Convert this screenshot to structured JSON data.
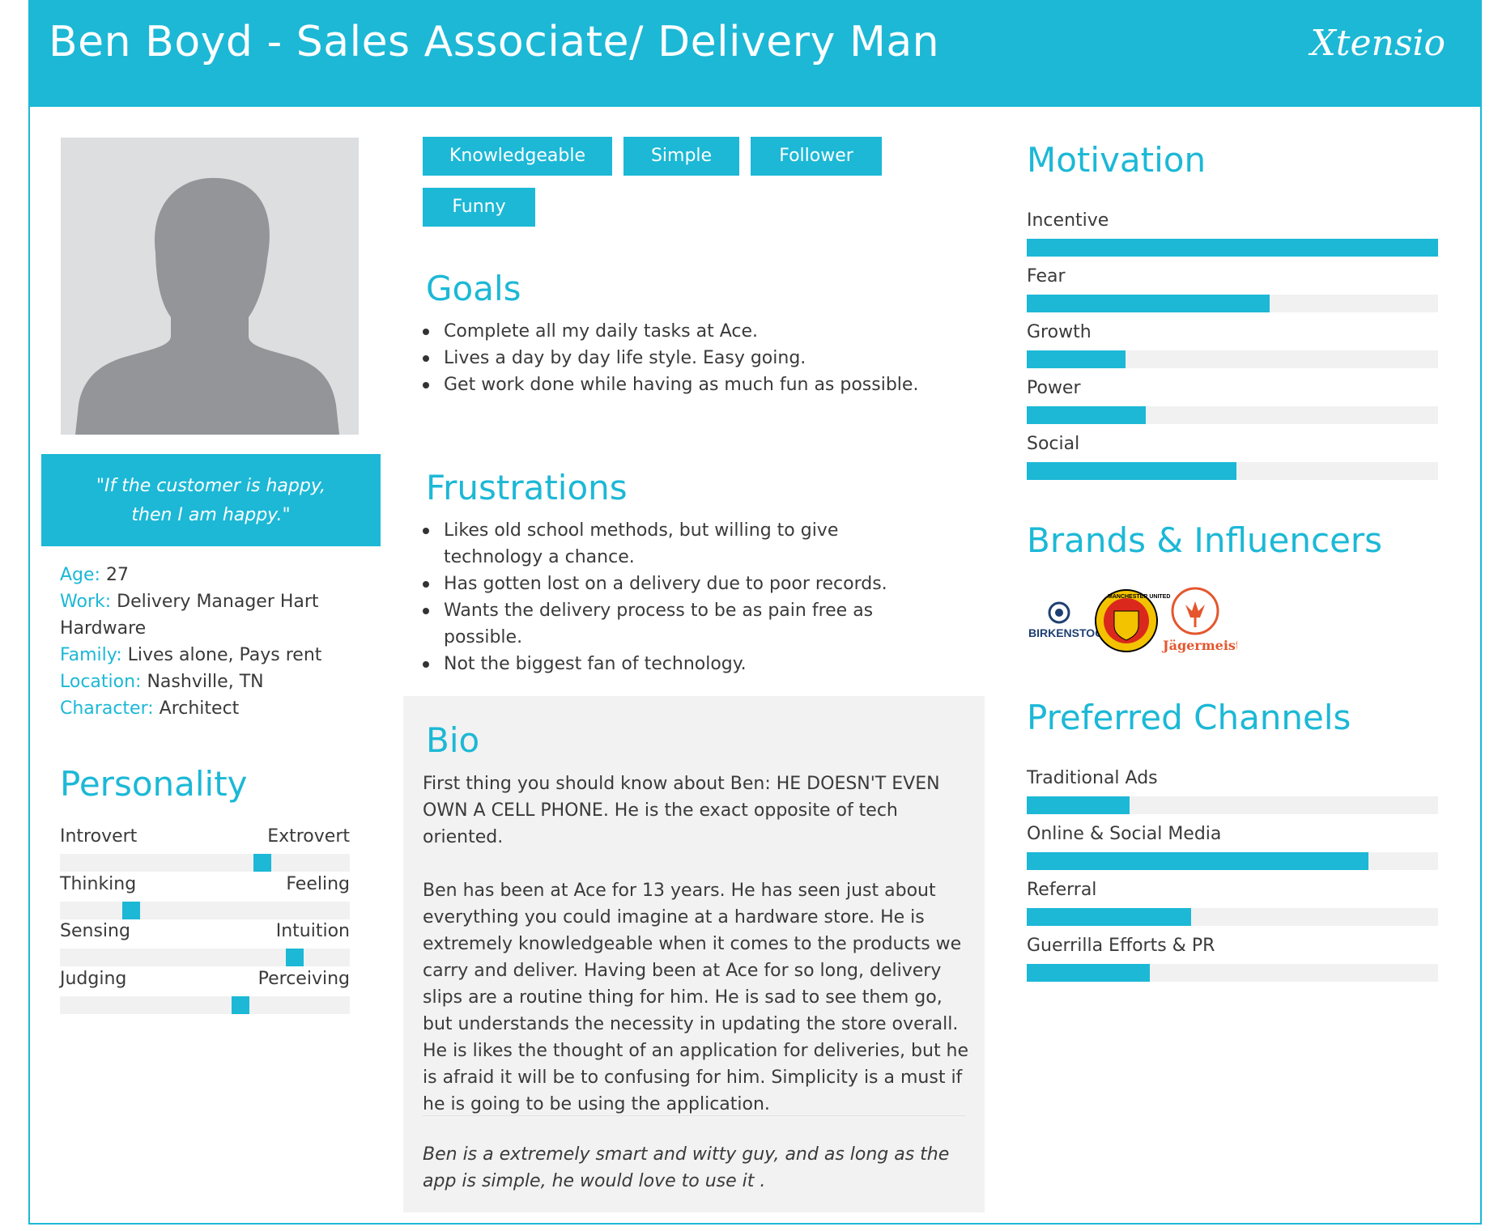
{
  "header": {
    "title": "Ben Boyd - Sales Associate/ Delivery Man",
    "logo": "Xtensio"
  },
  "quote": {
    "line1": "\"If the customer is happy,",
    "line2": "then I am happy.\""
  },
  "info": {
    "age_label": "Age:",
    "age": "27",
    "work_label": "Work:",
    "work_line1": "Delivery Manager Hart",
    "work_line2": "Hardware",
    "family_label": "Family:",
    "family": "Lives alone, Pays rent",
    "location_label": "Location:",
    "location": "Nashville, TN",
    "character_label": "Character:",
    "character": "Architect"
  },
  "personality": {
    "title": "Personality",
    "scales": [
      {
        "left": "Introvert",
        "right": "Extrovert",
        "value": 0.71
      },
      {
        "left": "Thinking",
        "right": "Feeling",
        "value": 0.23
      },
      {
        "left": "Sensing",
        "right": "Intuition",
        "value": 0.83
      },
      {
        "left": "Judging",
        "right": "Perceiving",
        "value": 0.63
      }
    ]
  },
  "tags": [
    "Knowledgeable",
    "Simple",
    "Follower",
    "Funny"
  ],
  "goals": {
    "title": "Goals",
    "items": [
      "Complete all my daily tasks at Ace.",
      "Lives a day by day life style. Easy going.",
      "Get work done while having as much fun as possible."
    ]
  },
  "frustrations": {
    "title": "Frustrations",
    "items": [
      "Likes old school methods, but willing to give technology a chance.",
      "Has gotten lost on a delivery due to poor records.",
      "Wants the delivery process to be as pain free as possible.",
      "Not the biggest fan of technology."
    ]
  },
  "bio": {
    "title": "Bio",
    "p1": "First thing you should know about Ben: HE DOESN'T EVEN OWN A CELL PHONE. He is the exact opposite of tech oriented.",
    "p2": "Ben has been at Ace for 13 years. He has seen just about everything you could imagine at a hardware store. He is extremely knowledgeable when it comes to the products we carry and deliver. Having been at Ace for so long, delivery slips are a routine thing for him. He is sad to see them go, but understands the necessity in updating the store overall. He is likes the thought of an application for deliveries, but he is afraid it will be to confusing for him. Simplicity is a must if he is going to be using the application.",
    "note": "Ben is a extremely smart and witty guy, and as long as the app is simple, he would love to use it ."
  },
  "motivation": {
    "title": "Motivation",
    "items": [
      {
        "label": "Incentive",
        "value": 1.0
      },
      {
        "label": "Fear",
        "value": 0.59
      },
      {
        "label": "Growth",
        "value": 0.24
      },
      {
        "label": "Power",
        "value": 0.29
      },
      {
        "label": "Social",
        "value": 0.51
      }
    ]
  },
  "brands": {
    "title": "Brands & Influencers",
    "logos": [
      {
        "name": "birkenstock-logo",
        "text": "BIRKENSTOCK"
      },
      {
        "name": "manchester-united-logo",
        "text": "MANCHESTER UNITED"
      },
      {
        "name": "jagermeister-logo",
        "text": "Jägermeister"
      }
    ]
  },
  "channels": {
    "title": "Preferred Channels",
    "items": [
      {
        "label": "Traditional Ads",
        "value": 0.25
      },
      {
        "label": "Online & Social Media",
        "value": 0.83
      },
      {
        "label": "Referral",
        "value": 0.4
      },
      {
        "label": "Guerrilla Efforts & PR",
        "value": 0.3
      }
    ]
  },
  "colors": {
    "accent": "#1cb8d6",
    "track": "#f1f1f1",
    "bio_bg": "#f2f2f2"
  }
}
